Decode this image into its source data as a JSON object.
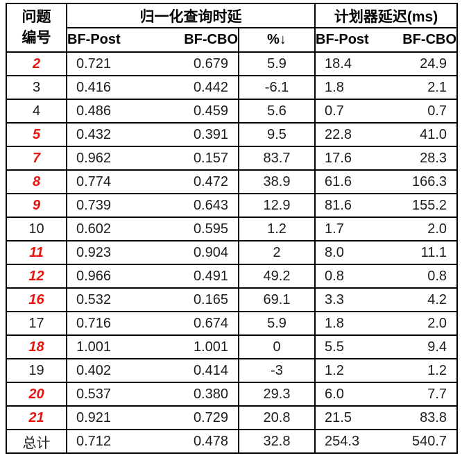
{
  "colors": {
    "highlight_red": "#e8130f",
    "border": "#000000",
    "text": "#1c1c1c",
    "background": "#ffffff"
  },
  "table": {
    "header": {
      "question_col_line1": "问题",
      "question_col_line2": "编号",
      "group_latency": "归一化查询时延",
      "group_planner": "计划器延迟(ms)",
      "sub": {
        "latency_bfpost": "BF-Post",
        "latency_bfcbo": "BF-CBO",
        "pct_down": "%↓",
        "planner_bfpost": "BF-Post",
        "planner_bfcbo": "BF-CBO"
      }
    },
    "rows": [
      {
        "id": "2",
        "em": true,
        "values": [
          "0.721",
          "0.679",
          "5.9",
          "18.4",
          "24.9"
        ]
      },
      {
        "id": "3",
        "em": false,
        "values": [
          "0.416",
          "0.442",
          "-6.1",
          "1.8",
          "2.1"
        ]
      },
      {
        "id": "4",
        "em": false,
        "values": [
          "0.486",
          "0.459",
          "5.6",
          "0.7",
          "0.7"
        ]
      },
      {
        "id": "5",
        "em": true,
        "values": [
          "0.432",
          "0.391",
          "9.5",
          "22.8",
          "41.0"
        ]
      },
      {
        "id": "7",
        "em": true,
        "values": [
          "0.962",
          "0.157",
          "83.7",
          "17.6",
          "28.3"
        ]
      },
      {
        "id": "8",
        "em": true,
        "values": [
          "0.774",
          "0.472",
          "38.9",
          "61.6",
          "166.3"
        ]
      },
      {
        "id": "9",
        "em": true,
        "values": [
          "0.739",
          "0.643",
          "12.9",
          "81.6",
          "155.2"
        ]
      },
      {
        "id": "10",
        "em": false,
        "values": [
          "0.602",
          "0.595",
          "1.2",
          "1.7",
          "2.0"
        ]
      },
      {
        "id": "11",
        "em": true,
        "values": [
          "0.923",
          "0.904",
          "2",
          "8.0",
          "11.1"
        ]
      },
      {
        "id": "12",
        "em": true,
        "values": [
          "0.966",
          "0.491",
          "49.2",
          "0.8",
          "0.8"
        ]
      },
      {
        "id": "16",
        "em": true,
        "values": [
          "0.532",
          "0.165",
          "69.1",
          "3.3",
          "4.2"
        ]
      },
      {
        "id": "17",
        "em": false,
        "values": [
          "0.716",
          "0.674",
          "5.9",
          "1.8",
          "2.0"
        ]
      },
      {
        "id": "18",
        "em": true,
        "values": [
          "1.001",
          "1.001",
          "0",
          "5.5",
          "9.4"
        ]
      },
      {
        "id": "19",
        "em": false,
        "values": [
          "0.402",
          "0.414",
          "-3",
          "1.2",
          "1.2"
        ]
      },
      {
        "id": "20",
        "em": true,
        "values": [
          "0.537",
          "0.380",
          "29.3",
          "6.0",
          "7.7"
        ]
      },
      {
        "id": "21",
        "em": true,
        "values": [
          "0.921",
          "0.729",
          "20.8",
          "21.5",
          "83.8"
        ]
      },
      {
        "id": "总计",
        "em": false,
        "values": [
          "0.712",
          "0.478",
          "32.8",
          "254.3",
          "540.7"
        ]
      }
    ]
  }
}
